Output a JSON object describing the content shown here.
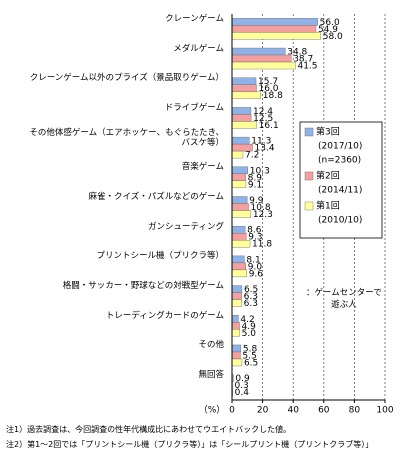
{
  "chart_data": {
    "type": "hbar",
    "categories": [
      "クレーンゲーム",
      "メダルゲーム",
      "クレーンゲーム以外のプライズ（景品取りゲーム）",
      "ドライブゲーム",
      "その他体感ゲーム（エアホッケー、もぐらたたき、\nバスケ等）",
      "音楽ゲーム",
      "麻雀・クイズ・パズルなどのゲーム",
      "ガンシューティング",
      "プリントシール機（プリクラ等）",
      "格闘・サッカー・野球などの対戦型ゲーム",
      "トレーディングカードのゲーム",
      "その他",
      "無回答"
    ],
    "series": [
      {
        "name": "第3回",
        "period": "(2017/10)",
        "sample": "(n=2360)",
        "color": "#8fb3e8",
        "values": [
          56.0,
          34.8,
          15.7,
          12.4,
          11.3,
          10.3,
          9.9,
          8.6,
          8.1,
          6.5,
          4.2,
          5.8,
          0.9
        ],
        "value_labels": [
          "56.0",
          "34.8",
          "15.7",
          "12.4",
          "11.3",
          "10.3",
          "9.9",
          "8.6",
          "8.1",
          "6.5",
          "4.2",
          "5.8",
          "0.9"
        ]
      },
      {
        "name": "第2回",
        "period": "(2014/11)",
        "color": "#f4a0a0",
        "values": [
          54.9,
          38.7,
          16.0,
          12.5,
          13.4,
          8.9,
          10.8,
          9.3,
          9.0,
          6.3,
          4.9,
          5.5,
          0.3
        ],
        "value_labels": [
          "54.9",
          "38.7",
          "16.0",
          "12.5",
          "13.4",
          "8.9",
          "10.8",
          "9.3",
          "9.0",
          "6.3",
          "4.9",
          "5.5",
          "0.3"
        ]
      },
      {
        "name": "第1回",
        "period": "(2010/10)",
        "color": "#ffff99",
        "values": [
          58.0,
          41.5,
          18.8,
          16.1,
          7.2,
          9.1,
          12.3,
          11.8,
          9.6,
          6.3,
          5.0,
          6.5,
          0.4
        ],
        "value_labels": [
          "58.0",
          "41.5",
          "18.8",
          "16.1",
          "7.2",
          "9.1",
          "12.3",
          "11.8",
          "9.6",
          "6.3",
          "5.0",
          "6.5",
          "0.4"
        ]
      }
    ],
    "xlim": [
      0,
      100
    ],
    "xticks": [
      0,
      20,
      40,
      60,
      80,
      100
    ],
    "grid": true,
    "x_axis_label": "（%）",
    "annotation": "：ゲームセンターで\n遊ぶ人",
    "notes": [
      "注1）過去調査は、今回調査の性年代構成比にあわせてウエイトバックした値。",
      "注2）第1～2回では「プリントシール機（プリクラ等）」は「シールプリント機（プリントクラブ等）」"
    ]
  }
}
